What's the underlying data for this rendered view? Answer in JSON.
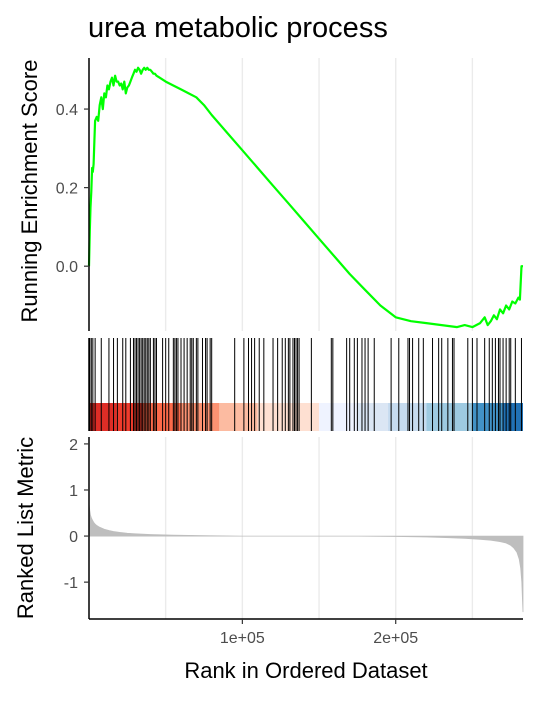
{
  "chart_data": [
    {
      "type": "line",
      "title": "urea metabolic process",
      "ylabel": "Running Enrichment Score",
      "xlim": [
        0,
        283000
      ],
      "ylim": [
        -0.165,
        0.53
      ],
      "y_ticks": [
        0.0,
        0.2,
        0.4
      ],
      "y_tick_labels": [
        "0.0",
        "0.2",
        "0.4"
      ],
      "x_grid_lines": [
        50000,
        100000,
        150000,
        200000,
        250000
      ],
      "grid": "vertical",
      "color": "#00ff00",
      "series": [
        {
          "x": [
            0,
            500,
            1000,
            1500,
            2000,
            2500,
            3000,
            3500,
            4000,
            5000,
            6000,
            7000,
            8000,
            9000,
            10000,
            11000,
            12000,
            13000,
            14000,
            15000,
            16000,
            17000,
            18000,
            19000,
            20000,
            21000,
            22000,
            23000,
            24000,
            25000,
            26000,
            27000,
            28000,
            29000,
            30000,
            31000,
            32000,
            33000,
            34000,
            35000,
            36000,
            37000,
            38000,
            39000,
            40000,
            41000,
            42000,
            43000,
            44000,
            46000,
            48000,
            50000,
            55000,
            60000,
            65000,
            70000,
            75000,
            80000,
            90000,
            100000,
            110000,
            120000,
            130000,
            140000,
            150000,
            160000,
            170000,
            180000,
            190000,
            200000,
            210000,
            220000,
            230000,
            240000,
            245000,
            250000,
            255000,
            258000,
            260000,
            262000,
            264000,
            266000,
            268000,
            270000,
            272000,
            274000,
            276000,
            278000,
            280000,
            281000,
            282000,
            283000
          ],
          "values": [
            0.0,
            0.09,
            0.15,
            0.19,
            0.25,
            0.24,
            0.26,
            0.32,
            0.37,
            0.38,
            0.37,
            0.41,
            0.43,
            0.4,
            0.44,
            0.43,
            0.46,
            0.45,
            0.47,
            0.48,
            0.46,
            0.485,
            0.47,
            0.47,
            0.46,
            0.465,
            0.45,
            0.47,
            0.44,
            0.455,
            0.46,
            0.47,
            0.48,
            0.49,
            0.5,
            0.495,
            0.505,
            0.5,
            0.49,
            0.5,
            0.505,
            0.5,
            0.505,
            0.5,
            0.5,
            0.495,
            0.49,
            0.49,
            0.485,
            0.48,
            0.475,
            0.47,
            0.46,
            0.45,
            0.44,
            0.43,
            0.41,
            0.385,
            0.34,
            0.295,
            0.25,
            0.205,
            0.16,
            0.115,
            0.07,
            0.025,
            -0.02,
            -0.06,
            -0.1,
            -0.13,
            -0.14,
            -0.145,
            -0.15,
            -0.155,
            -0.15,
            -0.155,
            -0.145,
            -0.13,
            -0.15,
            -0.14,
            -0.125,
            -0.135,
            -0.11,
            -0.12,
            -0.1,
            -0.11,
            -0.09,
            -0.095,
            -0.08,
            -0.085,
            0.0,
            0.0
          ]
        }
      ]
    },
    {
      "type": "rug",
      "description_free": true,
      "xlim": [
        0,
        283000
      ],
      "hit_ranks": [
        500,
        1500,
        2500,
        4000,
        8000,
        13000,
        16000,
        18500,
        22000,
        24000,
        27000,
        29000,
        30000,
        31000,
        32000,
        33000,
        34000,
        35000,
        36000,
        37000,
        38000,
        39000,
        40000,
        42000,
        43000,
        44000,
        48000,
        50000,
        52000,
        55000,
        56000,
        57000,
        58000,
        60000,
        62000,
        64000,
        66000,
        67000,
        68000,
        70000,
        71000,
        74000,
        76000,
        77000,
        79000,
        80000,
        95000,
        101000,
        104000,
        106000,
        108000,
        111000,
        114000,
        120000,
        123000,
        126000,
        128000,
        130000,
        131000,
        133000,
        134000,
        135000,
        136000,
        137000,
        145000,
        158000,
        159000,
        168000,
        170000,
        173000,
        175000,
        178000,
        180000,
        182000,
        186000,
        197000,
        202000,
        208000,
        209000,
        211000,
        215000,
        218000,
        224000,
        228000,
        230000,
        234000,
        237000,
        238000,
        247000,
        250000,
        253000,
        258000,
        261000,
        263000,
        265000,
        267000,
        268000,
        270000,
        272000,
        274000,
        275000,
        278000,
        282000
      ],
      "color_bands": [
        {
          "start": 0,
          "end": 18000,
          "color": "#de2d26"
        },
        {
          "start": 18000,
          "end": 35000,
          "color": "#ef3b2c"
        },
        {
          "start": 35000,
          "end": 60000,
          "color": "#fb6a4a"
        },
        {
          "start": 60000,
          "end": 85000,
          "color": "#fc9272"
        },
        {
          "start": 85000,
          "end": 110000,
          "color": "#fcbba1"
        },
        {
          "start": 110000,
          "end": 150000,
          "color": "#fee0d2"
        },
        {
          "start": 150000,
          "end": 175000,
          "color": "#eff3ff"
        },
        {
          "start": 175000,
          "end": 195000,
          "color": "#dbe6f4"
        },
        {
          "start": 195000,
          "end": 220000,
          "color": "#c6dbef"
        },
        {
          "start": 220000,
          "end": 250000,
          "color": "#9ecae1"
        },
        {
          "start": 250000,
          "end": 270000,
          "color": "#4292c6"
        },
        {
          "start": 270000,
          "end": 283000,
          "color": "#2171b5"
        }
      ]
    },
    {
      "type": "area",
      "ylabel": "Ranked List Metric",
      "xlabel": "Rank in Ordered Dataset",
      "xlim": [
        0,
        283000
      ],
      "ylim": [
        -1.8,
        2.15
      ],
      "x_ticks": [
        100000,
        200000
      ],
      "x_tick_labels": [
        "1e+05",
        "2e+05"
      ],
      "y_ticks": [
        2,
        1,
        0,
        -1
      ],
      "y_tick_labels": [
        "2",
        "1",
        "0",
        "-1"
      ],
      "x_grid_lines": [
        50000,
        100000,
        150000,
        200000,
        250000
      ],
      "color": "#bebebe",
      "series": [
        {
          "x": [
            0,
            500,
            1000,
            1500,
            2000,
            3000,
            4000,
            5000,
            7000,
            10000,
            13000,
            16000,
            20000,
            25000,
            30000,
            40000,
            55000,
            75000,
            100000,
            125000,
            150000,
            175000,
            200000,
            220000,
            235000,
            245000,
            255000,
            262000,
            268000,
            272000,
            275000,
            277000,
            279000,
            280500,
            281500,
            282200,
            282700,
            283000
          ],
          "values": [
            0.7,
            0.55,
            0.45,
            0.4,
            0.36,
            0.3,
            0.26,
            0.23,
            0.19,
            0.15,
            0.12,
            0.1,
            0.08,
            0.06,
            0.05,
            0.035,
            0.02,
            0.01,
            0.0,
            0.0,
            0.0,
            0.0,
            -0.01,
            -0.02,
            -0.035,
            -0.05,
            -0.07,
            -0.09,
            -0.12,
            -0.15,
            -0.2,
            -0.26,
            -0.35,
            -0.5,
            -0.7,
            -1.0,
            -1.4,
            -1.65
          ]
        }
      ]
    }
  ]
}
